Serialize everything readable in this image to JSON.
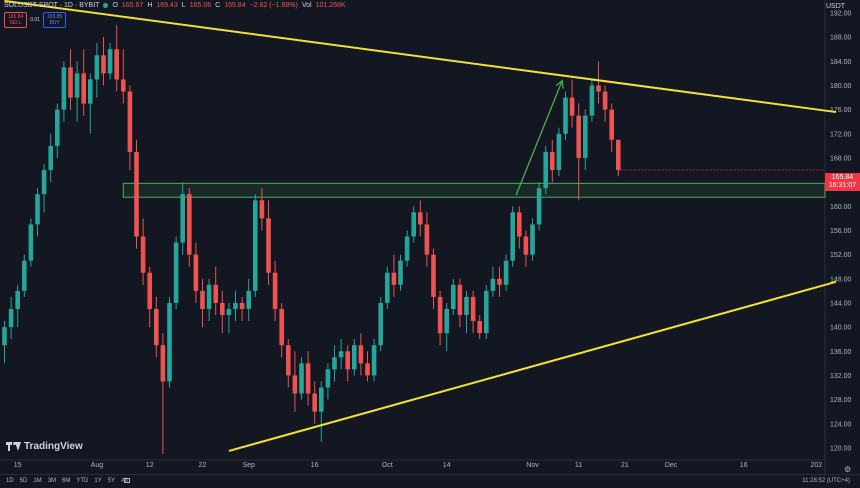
{
  "header": {
    "symbol": "SOLUSDT SPOT · 1D · BYBIT",
    "open_label": "O",
    "open": "165.67",
    "high_label": "H",
    "high": "169.43",
    "low_label": "L",
    "low": "165.06",
    "close_label": "C",
    "close": "165.84",
    "change": "−2.82 (−1.68%)",
    "vol_label": "Vol",
    "vol": "101.268K"
  },
  "trade": {
    "sell_price": "165.84",
    "sell_label": "SELL",
    "spread": "0.01",
    "buy_price": "165.85",
    "buy_label": "BUY"
  },
  "currency": "USDT",
  "current_price": {
    "price": "165.84",
    "countdown": "16:31:07",
    "color": "#f23645"
  },
  "branding": "TradingView",
  "bottom_bar": {
    "ranges": [
      "1D",
      "5D",
      "1M",
      "3M",
      "6M",
      "YTD",
      "1Y",
      "5Y",
      "All"
    ],
    "clock": "11:28:52 (UTC+4)"
  },
  "colors": {
    "up": "#26a69a",
    "down": "#ef5350",
    "trendline": "#f5e131",
    "zone": "#4caf50",
    "arrow": "#4caf50",
    "background": "#131722"
  },
  "chart_data": {
    "type": "candlestick",
    "ylim": [
      118,
      194
    ],
    "y_ticks": [
      "120.00",
      "124.00",
      "128.00",
      "132.00",
      "136.00",
      "140.00",
      "144.00",
      "148.00",
      "152.00",
      "156.00",
      "160.00",
      "164.00",
      "168.00",
      "172.00",
      "176.00",
      "180.00",
      "184.00",
      "188.00",
      "192.00"
    ],
    "x_ticks": [
      "15",
      "Aug",
      "12",
      "22",
      "Sep",
      "16",
      "Oct",
      "14",
      "Nov",
      "11",
      "21",
      "Dec",
      "16",
      "202"
    ],
    "candles": [
      {
        "o": 137,
        "h": 141,
        "l": 134,
        "c": 140
      },
      {
        "o": 140,
        "h": 145,
        "l": 138,
        "c": 143
      },
      {
        "o": 143,
        "h": 147,
        "l": 140,
        "c": 146
      },
      {
        "o": 146,
        "h": 152,
        "l": 145,
        "c": 151
      },
      {
        "o": 151,
        "h": 158,
        "l": 150,
        "c": 157
      },
      {
        "o": 157,
        "h": 163,
        "l": 155,
        "c": 162
      },
      {
        "o": 162,
        "h": 167,
        "l": 159,
        "c": 166
      },
      {
        "o": 166,
        "h": 172,
        "l": 164,
        "c": 170
      },
      {
        "o": 170,
        "h": 177,
        "l": 168,
        "c": 176
      },
      {
        "o": 176,
        "h": 184,
        "l": 174,
        "c": 183
      },
      {
        "o": 183,
        "h": 186,
        "l": 176,
        "c": 178
      },
      {
        "o": 178,
        "h": 184,
        "l": 174,
        "c": 182
      },
      {
        "o": 182,
        "h": 186,
        "l": 175,
        "c": 177
      },
      {
        "o": 177,
        "h": 182,
        "l": 172,
        "c": 181
      },
      {
        "o": 181,
        "h": 187,
        "l": 178,
        "c": 185
      },
      {
        "o": 185,
        "h": 188,
        "l": 180,
        "c": 182
      },
      {
        "o": 182,
        "h": 187,
        "l": 181,
        "c": 186
      },
      {
        "o": 186,
        "h": 190,
        "l": 179,
        "c": 181
      },
      {
        "o": 181,
        "h": 186,
        "l": 177,
        "c": 179
      },
      {
        "o": 179,
        "h": 180,
        "l": 166,
        "c": 169
      },
      {
        "o": 169,
        "h": 171,
        "l": 153,
        "c": 155
      },
      {
        "o": 155,
        "h": 158,
        "l": 147,
        "c": 149
      },
      {
        "o": 149,
        "h": 150,
        "l": 140,
        "c": 143
      },
      {
        "o": 143,
        "h": 145,
        "l": 135,
        "c": 137
      },
      {
        "o": 137,
        "h": 139,
        "l": 119,
        "c": 131
      },
      {
        "o": 131,
        "h": 145,
        "l": 130,
        "c": 144
      },
      {
        "o": 144,
        "h": 155,
        "l": 143,
        "c": 154
      },
      {
        "o": 154,
        "h": 164,
        "l": 152,
        "c": 162
      },
      {
        "o": 162,
        "h": 163,
        "l": 150,
        "c": 152
      },
      {
        "o": 152,
        "h": 154,
        "l": 144,
        "c": 146
      },
      {
        "o": 146,
        "h": 148,
        "l": 140,
        "c": 143
      },
      {
        "o": 143,
        "h": 148,
        "l": 141,
        "c": 147
      },
      {
        "o": 147,
        "h": 150,
        "l": 142,
        "c": 144
      },
      {
        "o": 144,
        "h": 146,
        "l": 139,
        "c": 142
      },
      {
        "o": 142,
        "h": 144,
        "l": 139,
        "c": 143
      },
      {
        "o": 143,
        "h": 146,
        "l": 141,
        "c": 144
      },
      {
        "o": 144,
        "h": 145,
        "l": 141,
        "c": 143
      },
      {
        "o": 143,
        "h": 148,
        "l": 141,
        "c": 146
      },
      {
        "o": 146,
        "h": 162,
        "l": 145,
        "c": 161
      },
      {
        "o": 161,
        "h": 163,
        "l": 156,
        "c": 158
      },
      {
        "o": 158,
        "h": 161,
        "l": 147,
        "c": 149
      },
      {
        "o": 149,
        "h": 151,
        "l": 141,
        "c": 143
      },
      {
        "o": 143,
        "h": 144,
        "l": 135,
        "c": 137
      },
      {
        "o": 137,
        "h": 138,
        "l": 130,
        "c": 132
      },
      {
        "o": 132,
        "h": 136,
        "l": 126,
        "c": 129
      },
      {
        "o": 129,
        "h": 135,
        "l": 128,
        "c": 134
      },
      {
        "o": 134,
        "h": 136,
        "l": 127,
        "c": 129
      },
      {
        "o": 129,
        "h": 131,
        "l": 124,
        "c": 126
      },
      {
        "o": 126,
        "h": 131,
        "l": 121,
        "c": 130
      },
      {
        "o": 130,
        "h": 134,
        "l": 128,
        "c": 133
      },
      {
        "o": 133,
        "h": 137,
        "l": 131,
        "c": 135
      },
      {
        "o": 135,
        "h": 138,
        "l": 133,
        "c": 136
      },
      {
        "o": 136,
        "h": 137,
        "l": 131,
        "c": 133
      },
      {
        "o": 133,
        "h": 138,
        "l": 132,
        "c": 137
      },
      {
        "o": 137,
        "h": 139,
        "l": 132,
        "c": 134
      },
      {
        "o": 134,
        "h": 136,
        "l": 131,
        "c": 132
      },
      {
        "o": 132,
        "h": 138,
        "l": 131,
        "c": 137
      },
      {
        "o": 137,
        "h": 145,
        "l": 136,
        "c": 144
      },
      {
        "o": 144,
        "h": 150,
        "l": 143,
        "c": 149
      },
      {
        "o": 149,
        "h": 152,
        "l": 145,
        "c": 147
      },
      {
        "o": 147,
        "h": 152,
        "l": 146,
        "c": 151
      },
      {
        "o": 151,
        "h": 156,
        "l": 150,
        "c": 155
      },
      {
        "o": 155,
        "h": 160,
        "l": 154,
        "c": 159
      },
      {
        "o": 159,
        "h": 161,
        "l": 155,
        "c": 157
      },
      {
        "o": 157,
        "h": 159,
        "l": 150,
        "c": 152
      },
      {
        "o": 152,
        "h": 153,
        "l": 143,
        "c": 145
      },
      {
        "o": 145,
        "h": 146,
        "l": 137,
        "c": 139
      },
      {
        "o": 139,
        "h": 144,
        "l": 136,
        "c": 143
      },
      {
        "o": 143,
        "h": 148,
        "l": 142,
        "c": 147
      },
      {
        "o": 147,
        "h": 148,
        "l": 140,
        "c": 142
      },
      {
        "o": 142,
        "h": 146,
        "l": 139,
        "c": 145
      },
      {
        "o": 145,
        "h": 146,
        "l": 139,
        "c": 141
      },
      {
        "o": 141,
        "h": 142,
        "l": 138,
        "c": 139
      },
      {
        "o": 139,
        "h": 147,
        "l": 138,
        "c": 146
      },
      {
        "o": 146,
        "h": 150,
        "l": 145,
        "c": 148
      },
      {
        "o": 148,
        "h": 150,
        "l": 145,
        "c": 147
      },
      {
        "o": 147,
        "h": 152,
        "l": 146,
        "c": 151
      },
      {
        "o": 151,
        "h": 160,
        "l": 150,
        "c": 159
      },
      {
        "o": 159,
        "h": 160,
        "l": 153,
        "c": 155
      },
      {
        "o": 155,
        "h": 156,
        "l": 150,
        "c": 152
      },
      {
        "o": 152,
        "h": 158,
        "l": 151,
        "c": 157
      },
      {
        "o": 157,
        "h": 164,
        "l": 156,
        "c": 163
      },
      {
        "o": 163,
        "h": 170,
        "l": 162,
        "c": 169
      },
      {
        "o": 169,
        "h": 171,
        "l": 164,
        "c": 166
      },
      {
        "o": 166,
        "h": 173,
        "l": 165,
        "c": 172
      },
      {
        "o": 172,
        "h": 179,
        "l": 171,
        "c": 178
      },
      {
        "o": 178,
        "h": 181,
        "l": 173,
        "c": 175
      },
      {
        "o": 175,
        "h": 177,
        "l": 161,
        "c": 168
      },
      {
        "o": 168,
        "h": 176,
        "l": 166,
        "c": 175
      },
      {
        "o": 175,
        "h": 181,
        "l": 174,
        "c": 180
      },
      {
        "o": 180,
        "h": 184,
        "l": 177,
        "c": 179
      },
      {
        "o": 179,
        "h": 180,
        "l": 174,
        "c": 176
      },
      {
        "o": 176,
        "h": 177,
        "l": 169,
        "c": 171
      },
      {
        "o": 171,
        "h": 171,
        "l": 165,
        "c": 166
      }
    ],
    "annotations": {
      "upper_trendline": [
        [
          0,
          194
        ],
        [
          126,
          175.6
        ]
      ],
      "lower_trendline": [
        [
          34,
          119.5
        ],
        [
          126,
          147.5
        ]
      ],
      "support_zone": [
        161.5,
        163.8
      ],
      "arrow": {
        "from": [
          77.5,
          161.8
        ],
        "to": [
          84.5,
          180.8
        ]
      }
    }
  }
}
